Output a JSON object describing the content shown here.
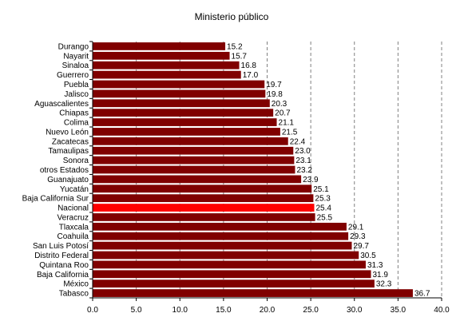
{
  "chart_data": {
    "type": "bar",
    "orientation": "horizontal",
    "title": "Ministerio público",
    "categories": [
      "Durango",
      "Nayarit",
      "Sinaloa",
      "Guerrero",
      "Puebla",
      "Jalisco",
      "Aguascalientes",
      "Chiapas",
      "Colima",
      "Nuevo León",
      "Zacatecas",
      "Tamaulipas",
      "Sonora",
      "otros Estados",
      "Guanajuato",
      "Yucatán",
      "Baja California Sur",
      "Nacional",
      "Veracruz",
      "Tlaxcala",
      "Coahuila",
      "San Luis Potosí",
      "Distrito Federal",
      "Quintana Roo",
      "Baja California",
      "México",
      "Tabasco"
    ],
    "values": [
      15.2,
      15.7,
      16.8,
      17.0,
      19.7,
      19.8,
      20.3,
      20.7,
      21.1,
      21.5,
      22.4,
      23.0,
      23.1,
      23.2,
      23.9,
      25.1,
      25.3,
      25.4,
      25.5,
      29.1,
      29.3,
      29.7,
      30.5,
      31.3,
      31.9,
      32.3,
      36.7
    ],
    "value_labels": [
      "15.2",
      "15.7",
      "16.8",
      "17.0",
      "19.7",
      "19.8",
      "20.3",
      "20.7",
      "21.1",
      "21.5",
      "22.4",
      "23.0",
      "23.1",
      "23.2",
      "23.9",
      "25.1",
      "25.3",
      "25.4",
      "25.5",
      "29.1",
      "29.3",
      "29.7",
      "30.5",
      "31.3",
      "31.9",
      "32.3",
      "36.7"
    ],
    "xlim": [
      0,
      40
    ],
    "x_ticks": [
      "0.0",
      "5.0",
      "10.0",
      "15.0",
      "20.0",
      "25.0",
      "30.0",
      "35.0",
      "40.0"
    ],
    "x_tick_values": [
      0,
      5,
      10,
      15,
      20,
      25,
      30,
      35,
      40
    ],
    "xlabel": "",
    "ylabel": "",
    "grid": "vertical dashed",
    "legend": "none",
    "highlight_category": "Nacional",
    "colors": {
      "bar": "#800000",
      "highlight": "#ff0000",
      "grid": "#808080",
      "axis": "#000000"
    }
  }
}
